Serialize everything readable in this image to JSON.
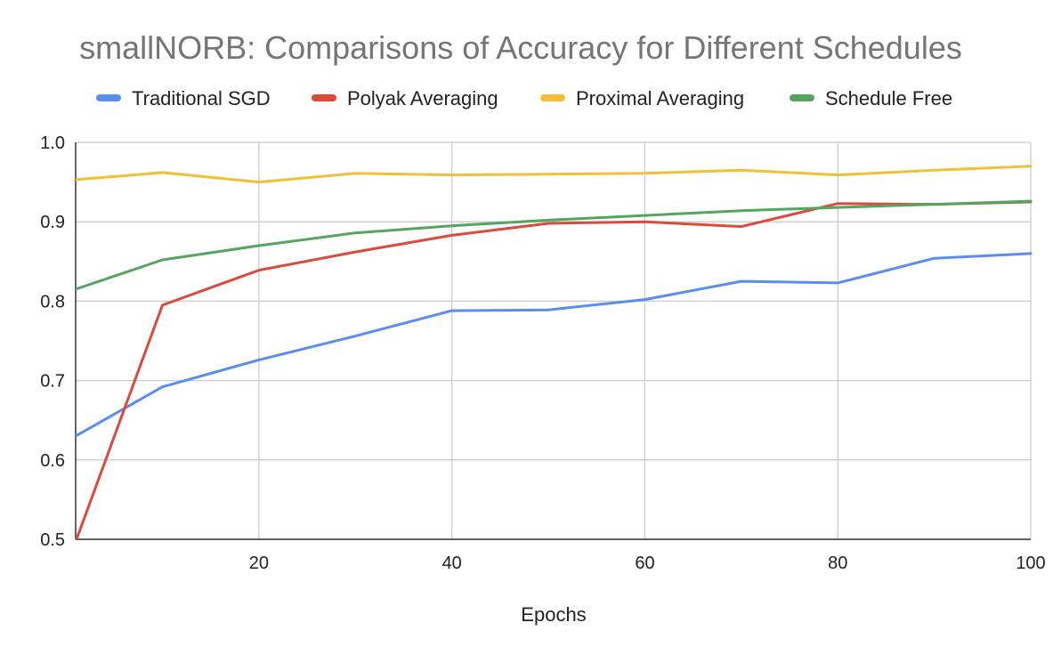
{
  "chart_data": {
    "type": "line",
    "title": "smallNORB: Comparisons of Accuracy for Different Schedules",
    "xlabel": "Epochs",
    "ylabel": "",
    "x": [
      1,
      10,
      20,
      30,
      40,
      50,
      60,
      70,
      80,
      90,
      100
    ],
    "xlim": [
      1,
      100
    ],
    "ylim": [
      0.5,
      1.0
    ],
    "xticks": [
      20,
      40,
      60,
      80,
      100
    ],
    "xtick_labels": [
      "20",
      "40",
      "60",
      "80",
      "100"
    ],
    "yticks": [
      0.5,
      0.6,
      0.7,
      0.8,
      0.9,
      1.0
    ],
    "ytick_labels": [
      "0.5",
      "0.6",
      "0.7",
      "0.8",
      "0.9",
      "1.0"
    ],
    "grid": true,
    "legend_position": "top",
    "series": [
      {
        "name": "Traditional SGD",
        "color": "#5B8DEF",
        "values": [
          0.63,
          0.692,
          0.726,
          0.756,
          0.788,
          0.789,
          0.802,
          0.825,
          0.823,
          0.854,
          0.86
        ]
      },
      {
        "name": "Polyak Averaging",
        "color": "#DB4B3C",
        "values": [
          0.497,
          0.795,
          0.839,
          0.862,
          0.883,
          0.898,
          0.9,
          0.894,
          0.923,
          0.922,
          0.925
        ]
      },
      {
        "name": "Proximal Averaging",
        "color": "#F2C037",
        "values": [
          0.953,
          0.962,
          0.95,
          0.961,
          0.959,
          0.96,
          0.961,
          0.965,
          0.959,
          0.965,
          0.97
        ]
      },
      {
        "name": "Schedule Free",
        "color": "#55A55E",
        "values": [
          0.815,
          0.852,
          0.87,
          0.886,
          0.895,
          0.902,
          0.908,
          0.914,
          0.918,
          0.922,
          0.926
        ]
      }
    ]
  }
}
